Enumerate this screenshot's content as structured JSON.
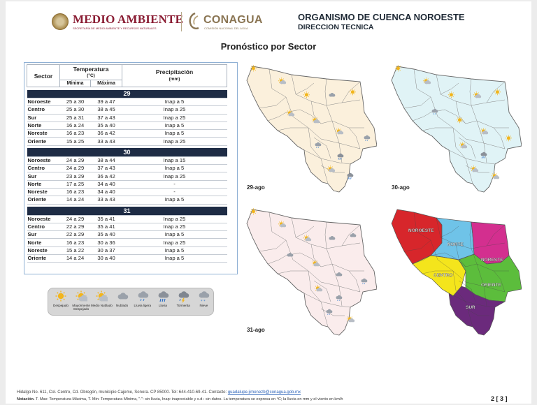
{
  "header": {
    "medio_title": "MEDIO AMBIENTE",
    "medio_sub": "SECRETARÍA DE MEDIO AMBIENTE Y RECURSOS NATURALES",
    "conagua_title": "CONAGUA",
    "conagua_sub": "COMISIÓN NACIONAL DEL AGUA",
    "org_title": "ORGANISMO DE CUENCA NOROESTE",
    "org_sub": "DIRECCION TECNICA"
  },
  "page_title": "Pronóstico por Sector",
  "table": {
    "headers": {
      "sector": "Sector",
      "temperature": "Temperatura",
      "temperature_unit": "(°C)",
      "min": "Mínima",
      "max": "Máxima",
      "precipitation": "Precipitación",
      "precipitation_unit": "(mm)"
    },
    "days": [
      {
        "day": "29",
        "rows": [
          {
            "sector": "Noroeste",
            "min": "25 a 30",
            "max": "39 a 47",
            "precip": "Inap a 5"
          },
          {
            "sector": "Centro",
            "min": "25 a 30",
            "max": "38 a 45",
            "precip": "Inap a 25"
          },
          {
            "sector": "Sur",
            "min": "25 a 31",
            "max": "37 a 43",
            "precip": "Inap a 25"
          },
          {
            "sector": "Norte",
            "min": "16 a 24",
            "max": "35 a 40",
            "precip": "Inap a 5"
          },
          {
            "sector": "Noreste",
            "min": "16 a 23",
            "max": "36 a 42",
            "precip": "Inap a 5"
          },
          {
            "sector": "Oriente",
            "min": "15 a 25",
            "max": "33 a 43",
            "precip": "Inap a 25"
          }
        ]
      },
      {
        "day": "30",
        "rows": [
          {
            "sector": "Noroeste",
            "min": "24 a 29",
            "max": "38 a 44",
            "precip": "Inap a 15"
          },
          {
            "sector": "Centro",
            "min": "24 a 29",
            "max": "37 a 43",
            "precip": "Inap a 5"
          },
          {
            "sector": "Sur",
            "min": "23 a 29",
            "max": "36 a 42",
            "precip": "Inap a 25"
          },
          {
            "sector": "Norte",
            "min": "17 a 25",
            "max": "34 a 40",
            "precip": "-"
          },
          {
            "sector": "Noreste",
            "min": "16 a 23",
            "max": "34 a 40",
            "precip": "-"
          },
          {
            "sector": "Oriente",
            "min": "14 a 24",
            "max": "33 a 43",
            "precip": "Inap a 5"
          }
        ]
      },
      {
        "day": "31",
        "rows": [
          {
            "sector": "Noroeste",
            "min": "24 a 29",
            "max": "35 a 41",
            "precip": "Inap a 25"
          },
          {
            "sector": "Centro",
            "min": "22 a 29",
            "max": "35 a 41",
            "precip": "Inap a 25"
          },
          {
            "sector": "Sur",
            "min": "22 a 29",
            "max": "35 a 40",
            "precip": "Inap a 5"
          },
          {
            "sector": "Norte",
            "min": "16 a 23",
            "max": "30 a 36",
            "precip": "Inap a 25"
          },
          {
            "sector": "Noreste",
            "min": "15 a 22",
            "max": "30 a 37",
            "precip": "Inap a 5"
          },
          {
            "sector": "Oriente",
            "min": "14 a 24",
            "max": "30 a 40",
            "precip": "Inap a 5"
          }
        ]
      }
    ]
  },
  "legend": [
    {
      "label": "Despejado",
      "icon": "sun-icon"
    },
    {
      "label": "Mayormente Despejado",
      "icon": "sun-cloud-icon"
    },
    {
      "label": "Medio Nublado",
      "icon": "sun-cloud-icon"
    },
    {
      "label": "Nublado",
      "icon": "cloud-icon"
    },
    {
      "label": "Lluvia ligera",
      "icon": "light-rain-icon"
    },
    {
      "label": "Lluvia",
      "icon": "rain-icon"
    },
    {
      "label": "Tormenta",
      "icon": "storm-icon"
    },
    {
      "label": "Nieve",
      "icon": "snow-icon"
    }
  ],
  "maps": {
    "day29": {
      "label": "29-ago",
      "fill": "#fbf0dc"
    },
    "day30": {
      "label": "30-ago",
      "fill": "#e0f3f6"
    },
    "day31": {
      "label": "31-ago",
      "fill": "#faecec"
    },
    "sectors": {
      "noroeste": {
        "label": "NOROESTE",
        "color": "#d7262b"
      },
      "norte": {
        "label": "NORTE",
        "color": "#6fc3e8"
      },
      "noreste": {
        "label": "NORESTE",
        "color": "#d32f8f"
      },
      "centro": {
        "label": "CENTRO",
        "color": "#f4e51c"
      },
      "oriente": {
        "label": "ORIENTE",
        "color": "#5cbd3c"
      },
      "sur": {
        "label": "SUR",
        "color": "#6b2a7c"
      }
    }
  },
  "footer": {
    "address": "Hidalgo No. 611, Col. Centro, Cd. Obregón, municipio Cajeme, Sonora. CP 85000. Tel: 644-410-69-41. Contacto: ",
    "email": "guadalupe.jimenezb@conagua.gob.mx",
    "note_label": "Notación.",
    "note": " T. Max: Temperatura Máxima, T. Min: Temperatura Mínima, \"-\": sin lluvia, Inap: inapreciable y s.d.: sin datos. La temperatura se expresa en °C; la lluvia en mm y el viento en km/h",
    "page": "2 [ 3 ]"
  }
}
